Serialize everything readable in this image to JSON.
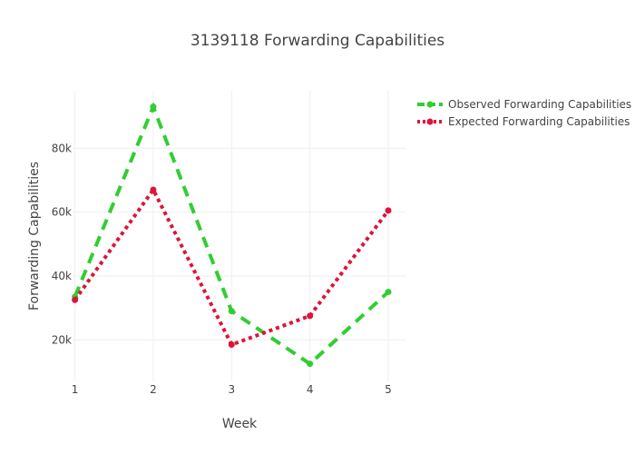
{
  "chart_data": {
    "type": "line",
    "title": "3139118 Forwarding Capabilities",
    "xlabel": "Week",
    "ylabel": "Forwarding Capabilities",
    "x": [
      1,
      2,
      3,
      4,
      5
    ],
    "xlim": [
      0.97,
      5.22
    ],
    "ylim": [
      7000,
      98000
    ],
    "yticks": [
      20000,
      40000,
      60000,
      80000
    ],
    "ytick_labels": [
      "20k",
      "40k",
      "60k",
      "80k"
    ],
    "grid": true,
    "legend_position": "top-right",
    "series": [
      {
        "name": "Observed Forwarding Capabilities",
        "values": [
          33500,
          93000,
          29000,
          12500,
          35000
        ],
        "color": "#32cd32",
        "line_style": "dash"
      },
      {
        "name": "Expected Forwarding Capabilities",
        "values": [
          32500,
          67000,
          18500,
          27500,
          60500
        ],
        "color": "#dc143c",
        "line_style": "dot"
      }
    ]
  }
}
